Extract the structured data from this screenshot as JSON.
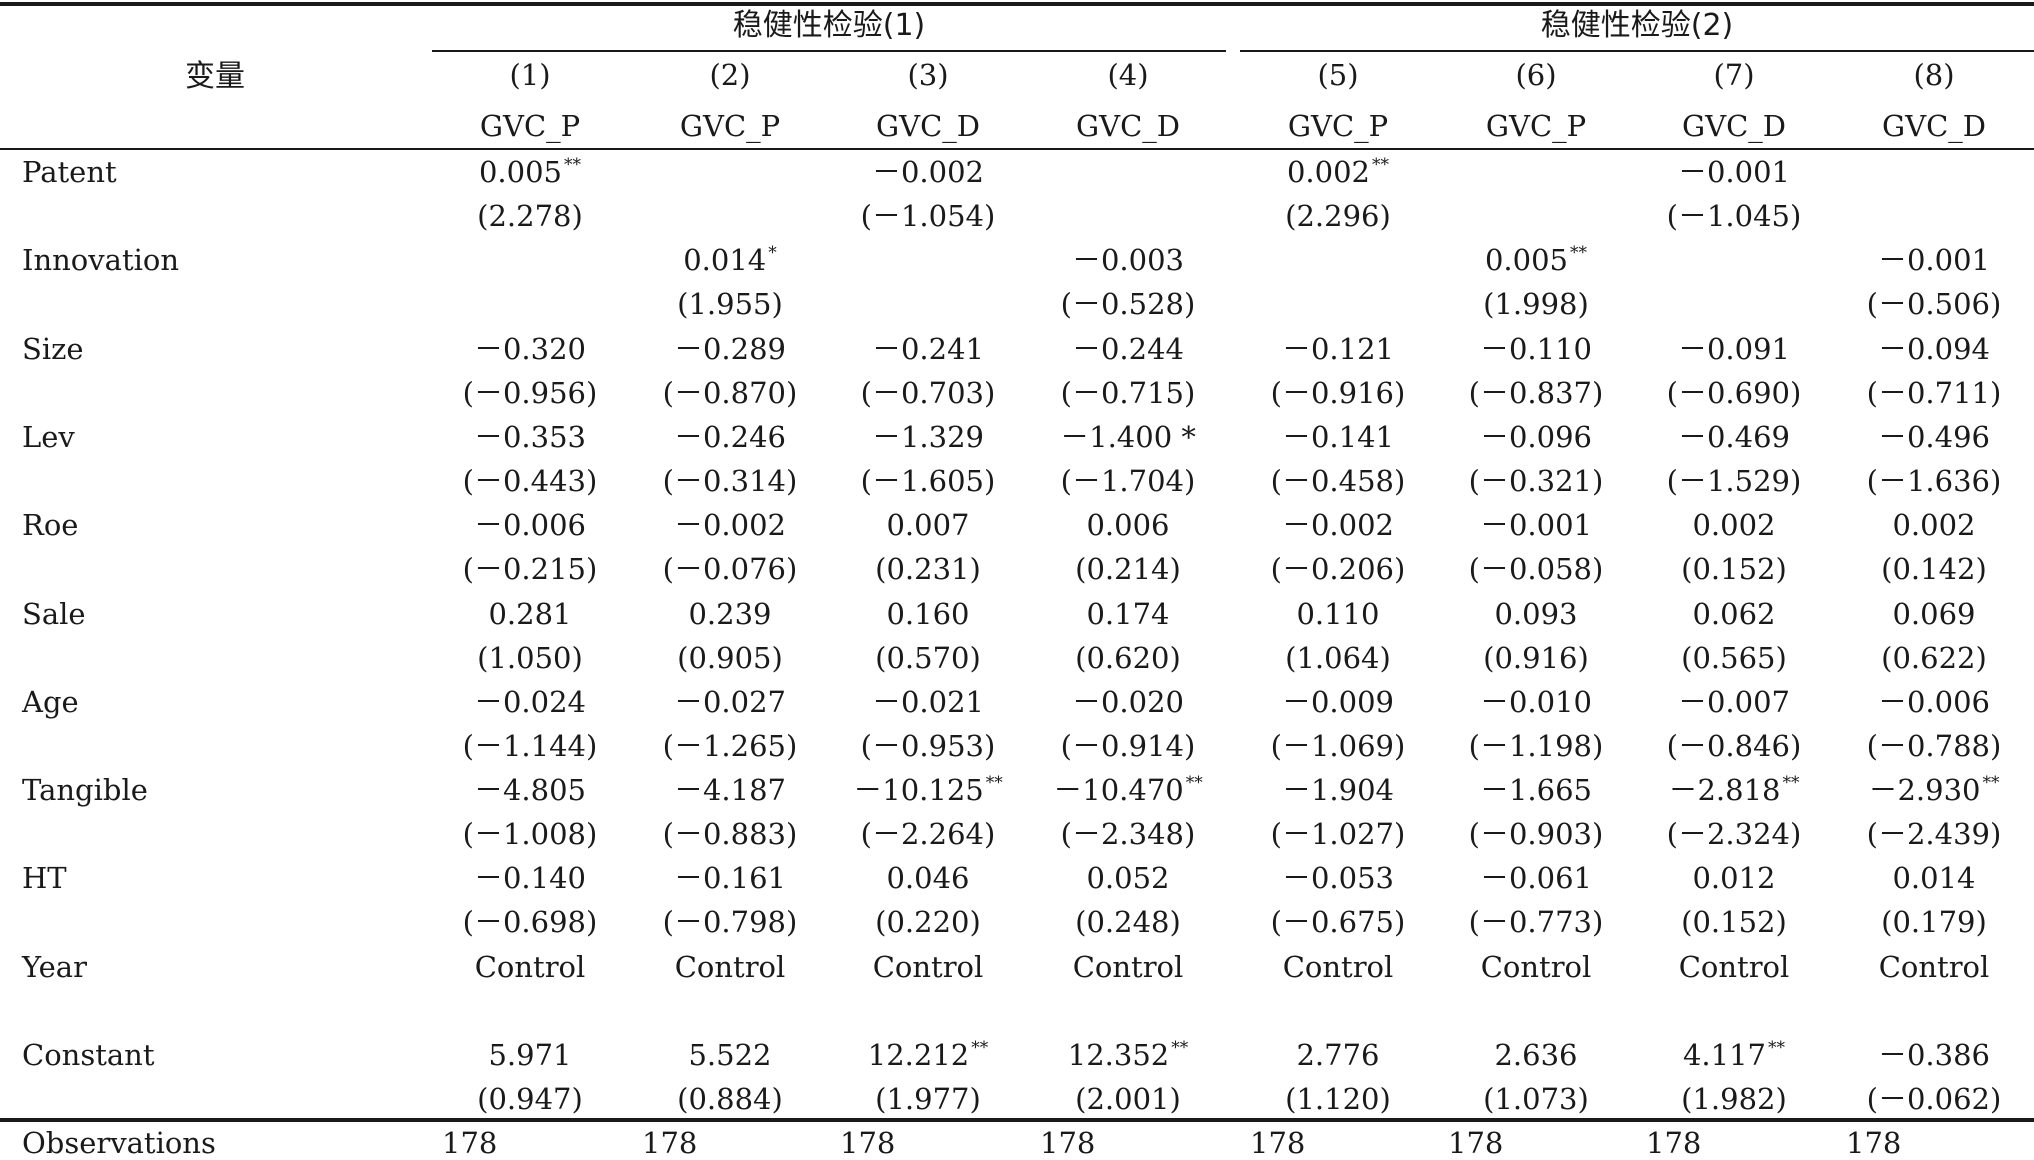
{
  "header": {
    "variable_label": "变量",
    "groups": [
      {
        "title": "稳健性检验(1)"
      },
      {
        "title": "稳健性检验(2)"
      }
    ],
    "columns": [
      {
        "num": "(1)",
        "dep": "GVC_P"
      },
      {
        "num": "(2)",
        "dep": "GVC_P"
      },
      {
        "num": "(3)",
        "dep": "GVC_D"
      },
      {
        "num": "(4)",
        "dep": "GVC_D"
      },
      {
        "num": "(5)",
        "dep": "GVC_P"
      },
      {
        "num": "(6)",
        "dep": "GVC_P"
      },
      {
        "num": "(7)",
        "dep": "GVC_D"
      },
      {
        "num": "(8)",
        "dep": "GVC_D"
      }
    ]
  },
  "rows": [
    {
      "name": "Patent",
      "coef": [
        {
          "v": "0.005",
          "s": "**"
        },
        {
          "v": "",
          "s": ""
        },
        {
          "v": "－0.002",
          "s": ""
        },
        {
          "v": "",
          "s": ""
        },
        {
          "v": "0.002",
          "s": "**"
        },
        {
          "v": "",
          "s": ""
        },
        {
          "v": "－0.001",
          "s": ""
        },
        {
          "v": "",
          "s": ""
        }
      ],
      "t": [
        "(2.278)",
        "",
        "(－1.054)",
        "",
        "(2.296)",
        "",
        "(－1.045)",
        ""
      ]
    },
    {
      "name": "Innovation",
      "coef": [
        {
          "v": "",
          "s": ""
        },
        {
          "v": "0.014",
          "s": "*"
        },
        {
          "v": "",
          "s": ""
        },
        {
          "v": "－0.003",
          "s": ""
        },
        {
          "v": "",
          "s": ""
        },
        {
          "v": "0.005",
          "s": "**"
        },
        {
          "v": "",
          "s": ""
        },
        {
          "v": "－0.001",
          "s": ""
        }
      ],
      "t": [
        "",
        "(1.955)",
        "",
        "(－0.528)",
        "",
        "(1.998)",
        "",
        "(－0.506)"
      ]
    },
    {
      "name": "Size",
      "coef": [
        {
          "v": "－0.320",
          "s": ""
        },
        {
          "v": "－0.289",
          "s": ""
        },
        {
          "v": "－0.241",
          "s": ""
        },
        {
          "v": "－0.244",
          "s": ""
        },
        {
          "v": "－0.121",
          "s": ""
        },
        {
          "v": "－0.110",
          "s": ""
        },
        {
          "v": "－0.091",
          "s": ""
        },
        {
          "v": "－0.094",
          "s": ""
        }
      ],
      "t": [
        "(－0.956)",
        "(－0.870)",
        "(－0.703)",
        "(－0.715)",
        "(－0.916)",
        "(－0.837)",
        "(－0.690)",
        "(－0.711)"
      ]
    },
    {
      "name": "Lev",
      "coef": [
        {
          "v": "－0.353",
          "s": ""
        },
        {
          "v": "－0.246",
          "s": ""
        },
        {
          "v": "－1.329",
          "s": ""
        },
        {
          "v": "－1.400 *",
          "s": ""
        },
        {
          "v": "－0.141",
          "s": ""
        },
        {
          "v": "－0.096",
          "s": ""
        },
        {
          "v": "－0.469",
          "s": ""
        },
        {
          "v": "－0.496",
          "s": ""
        }
      ],
      "t": [
        "(－0.443)",
        "(－0.314)",
        "(－1.605)",
        "(－1.704)",
        "(－0.458)",
        "(－0.321)",
        "(－1.529)",
        "(－1.636)"
      ]
    },
    {
      "name": "Roe",
      "coef": [
        {
          "v": "－0.006",
          "s": ""
        },
        {
          "v": "－0.002",
          "s": ""
        },
        {
          "v": "0.007",
          "s": ""
        },
        {
          "v": "0.006",
          "s": ""
        },
        {
          "v": "－0.002",
          "s": ""
        },
        {
          "v": "－0.001",
          "s": ""
        },
        {
          "v": "0.002",
          "s": ""
        },
        {
          "v": "0.002",
          "s": ""
        }
      ],
      "t": [
        "(－0.215)",
        "(－0.076)",
        "(0.231)",
        "(0.214)",
        "(－0.206)",
        "(－0.058)",
        "(0.152)",
        "(0.142)"
      ]
    },
    {
      "name": "Sale",
      "coef": [
        {
          "v": "0.281",
          "s": ""
        },
        {
          "v": "0.239",
          "s": ""
        },
        {
          "v": "0.160",
          "s": ""
        },
        {
          "v": "0.174",
          "s": ""
        },
        {
          "v": "0.110",
          "s": ""
        },
        {
          "v": "0.093",
          "s": ""
        },
        {
          "v": "0.062",
          "s": ""
        },
        {
          "v": "0.069",
          "s": ""
        }
      ],
      "t": [
        "(1.050)",
        "(0.905)",
        "(0.570)",
        "(0.620)",
        "(1.064)",
        "(0.916)",
        "(0.565)",
        "(0.622)"
      ]
    },
    {
      "name": "Age",
      "coef": [
        {
          "v": "－0.024",
          "s": ""
        },
        {
          "v": "－0.027",
          "s": ""
        },
        {
          "v": "－0.021",
          "s": ""
        },
        {
          "v": "－0.020",
          "s": ""
        },
        {
          "v": "－0.009",
          "s": ""
        },
        {
          "v": "－0.010",
          "s": ""
        },
        {
          "v": "－0.007",
          "s": ""
        },
        {
          "v": "－0.006",
          "s": ""
        }
      ],
      "t": [
        "(－1.144)",
        "(－1.265)",
        "(－0.953)",
        "(－0.914)",
        "(－1.069)",
        "(－1.198)",
        "(－0.846)",
        "(－0.788)"
      ]
    },
    {
      "name": "Tangible",
      "coef": [
        {
          "v": "－4.805",
          "s": ""
        },
        {
          "v": "－4.187",
          "s": ""
        },
        {
          "v": "－10.125",
          "s": "**"
        },
        {
          "v": "－10.470",
          "s": "**"
        },
        {
          "v": "－1.904",
          "s": ""
        },
        {
          "v": "－1.665",
          "s": ""
        },
        {
          "v": "－2.818",
          "s": "**"
        },
        {
          "v": "－2.930",
          "s": "**"
        }
      ],
      "t": [
        "(－1.008)",
        "(－0.883)",
        "(－2.264)",
        "(－2.348)",
        "(－1.027)",
        "(－0.903)",
        "(－2.324)",
        "(－2.439)"
      ]
    },
    {
      "name": "HT",
      "coef": [
        {
          "v": "－0.140",
          "s": ""
        },
        {
          "v": "－0.161",
          "s": ""
        },
        {
          "v": "0.046",
          "s": ""
        },
        {
          "v": "0.052",
          "s": ""
        },
        {
          "v": "－0.053",
          "s": ""
        },
        {
          "v": "－0.061",
          "s": ""
        },
        {
          "v": "0.012",
          "s": ""
        },
        {
          "v": "0.014",
          "s": ""
        }
      ],
      "t": [
        "(－0.698)",
        "(－0.798)",
        "(0.220)",
        "(0.248)",
        "(－0.675)",
        "(－0.773)",
        "(0.152)",
        "(0.179)"
      ]
    },
    {
      "name": "Year",
      "coef": [
        {
          "v": "Control",
          "s": ""
        },
        {
          "v": "Control",
          "s": ""
        },
        {
          "v": "Control",
          "s": ""
        },
        {
          "v": "Control",
          "s": ""
        },
        {
          "v": "Control",
          "s": ""
        },
        {
          "v": "Control",
          "s": ""
        },
        {
          "v": "Control",
          "s": ""
        },
        {
          "v": "Control",
          "s": ""
        }
      ],
      "t": null
    },
    {
      "name": "Constant",
      "coef": [
        {
          "v": "5.971",
          "s": ""
        },
        {
          "v": "5.522",
          "s": ""
        },
        {
          "v": "12.212",
          "s": "**"
        },
        {
          "v": "12.352",
          "s": "**"
        },
        {
          "v": "2.776",
          "s": ""
        },
        {
          "v": "2.636",
          "s": ""
        },
        {
          "v": "4.117",
          "s": "**"
        },
        {
          "v": "－0.386",
          "s": ""
        }
      ],
      "t": [
        "(0.947)",
        "(0.884)",
        "(1.977)",
        "(2.001)",
        "(1.120)",
        "(1.073)",
        "(1.982)",
        "(－0.062)"
      ]
    },
    {
      "name": "Observations",
      "coef": [
        {
          "v": "178",
          "s": ""
        },
        {
          "v": "178",
          "s": ""
        },
        {
          "v": "178",
          "s": ""
        },
        {
          "v": "178",
          "s": ""
        },
        {
          "v": "178",
          "s": ""
        },
        {
          "v": "178",
          "s": ""
        },
        {
          "v": "178",
          "s": ""
        },
        {
          "v": "178",
          "s": ""
        }
      ],
      "t": null,
      "left_aligned": true
    }
  ]
}
